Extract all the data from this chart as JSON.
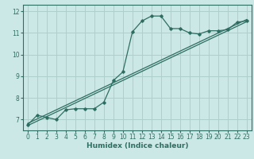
{
  "xlabel": "Humidex (Indice chaleur)",
  "bg_color": "#cce8e6",
  "line_color": "#2e6e62",
  "grid_color": "#aed0cc",
  "xlim": [
    -0.5,
    23.5
  ],
  "ylim": [
    6.5,
    12.3
  ],
  "xticks": [
    0,
    1,
    2,
    3,
    4,
    5,
    6,
    7,
    8,
    9,
    10,
    11,
    12,
    13,
    14,
    15,
    16,
    17,
    18,
    19,
    20,
    21,
    22,
    23
  ],
  "yticks": [
    7,
    8,
    9,
    10,
    11,
    12
  ],
  "curve_x": [
    0,
    1,
    2,
    3,
    4,
    5,
    6,
    7,
    8,
    9,
    10,
    11,
    12,
    13,
    14,
    15,
    16,
    17,
    18,
    19,
    20,
    21,
    22,
    23
  ],
  "curve_y": [
    6.75,
    7.2,
    7.1,
    7.0,
    7.45,
    7.5,
    7.5,
    7.5,
    7.8,
    8.8,
    9.2,
    11.05,
    11.55,
    11.78,
    11.78,
    11.2,
    11.2,
    11.0,
    10.95,
    11.1,
    11.1,
    11.15,
    11.5,
    11.55
  ],
  "line1_x": [
    0,
    23
  ],
  "line1_y": [
    6.72,
    11.52
  ],
  "line2_x": [
    0,
    23
  ],
  "line2_y": [
    6.82,
    11.62
  ]
}
